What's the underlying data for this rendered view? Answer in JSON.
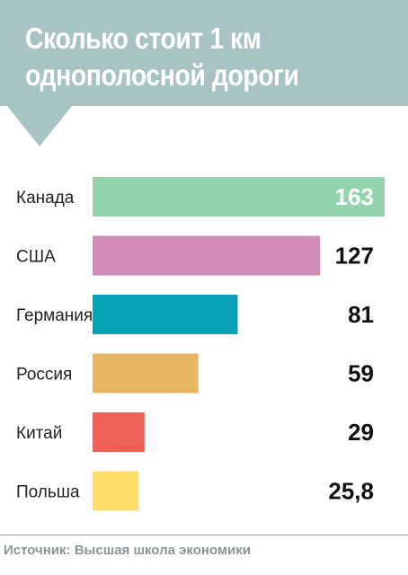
{
  "header": {
    "title_line1": "Сколько стоит 1 км",
    "title_line2": "однополосной дороги",
    "background_color": "#a7c3c3"
  },
  "chart_data": {
    "type": "bar",
    "orientation": "horizontal",
    "categories": [
      "Канада",
      "США",
      "Германия",
      "Россия",
      "Китай",
      "Польша"
    ],
    "values": [
      163,
      127,
      81,
      59,
      29,
      25.8
    ],
    "value_labels": [
      "163",
      "127",
      "81",
      "59",
      "29",
      "25,8"
    ],
    "colors": [
      "#93d4ad",
      "#d18bb6",
      "#08a2b7",
      "#e8b660",
      "#ef6059",
      "#fbdd67"
    ],
    "xlim": [
      0,
      163
    ],
    "grid": false,
    "legend": "none"
  },
  "footer": {
    "source": "Источник: Высшая школа экономики"
  }
}
